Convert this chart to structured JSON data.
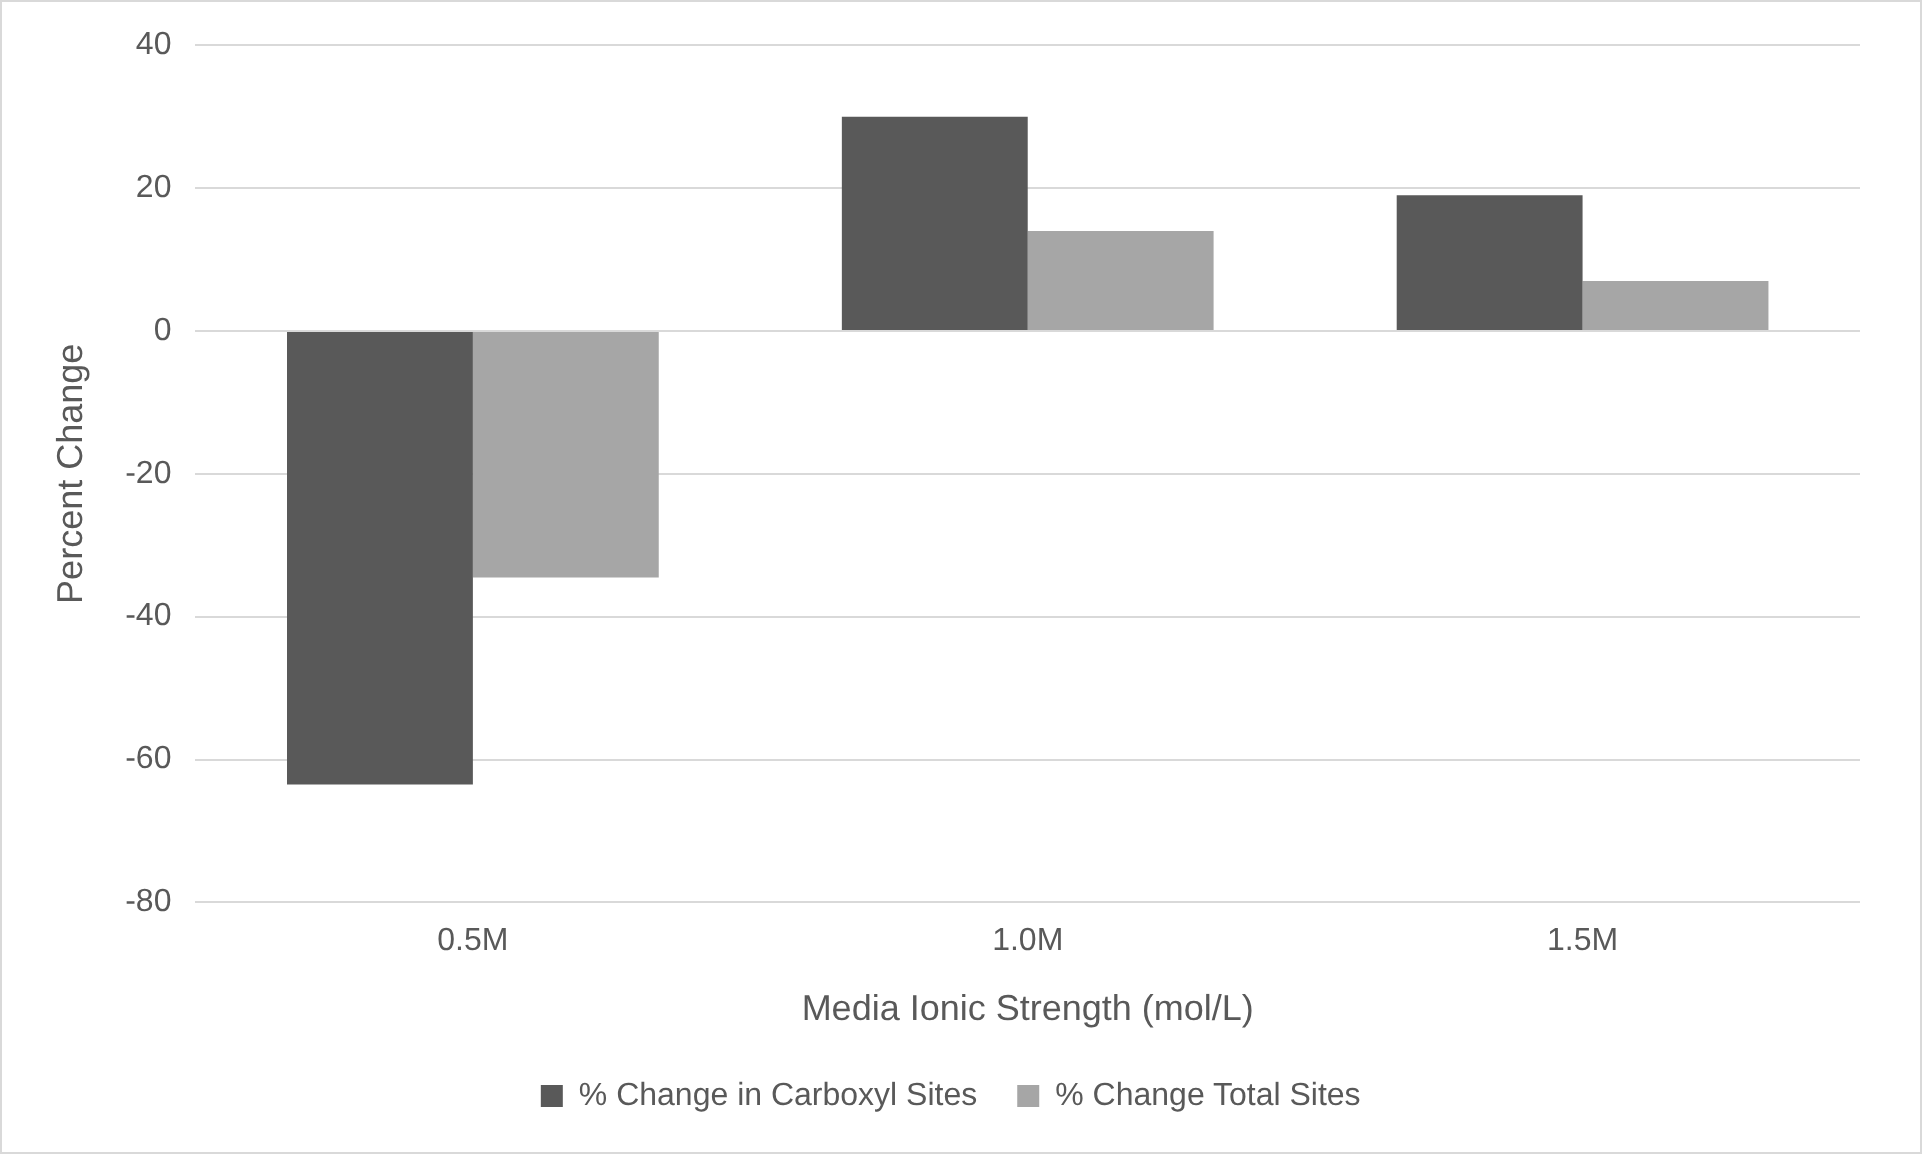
{
  "chart_data": {
    "type": "bar",
    "xlabel": "Media Ionic Strength (mol/L)",
    "ylabel": "Percent Change",
    "categories": [
      "0.5M",
      "1.0M",
      "1.5M"
    ],
    "series": [
      {
        "name": "% Change in Carboxyl Sites",
        "color": "#595959",
        "values": [
          -63.5,
          30,
          19
        ]
      },
      {
        "name": "% Change Total Sites",
        "color": "#a6a6a6",
        "values": [
          -34.5,
          14,
          7
        ]
      }
    ],
    "ylim": [
      -80,
      40
    ],
    "yticks": [
      -80,
      -60,
      -40,
      -20,
      0,
      20,
      40
    ],
    "grid": "y",
    "legend": "bottom"
  }
}
